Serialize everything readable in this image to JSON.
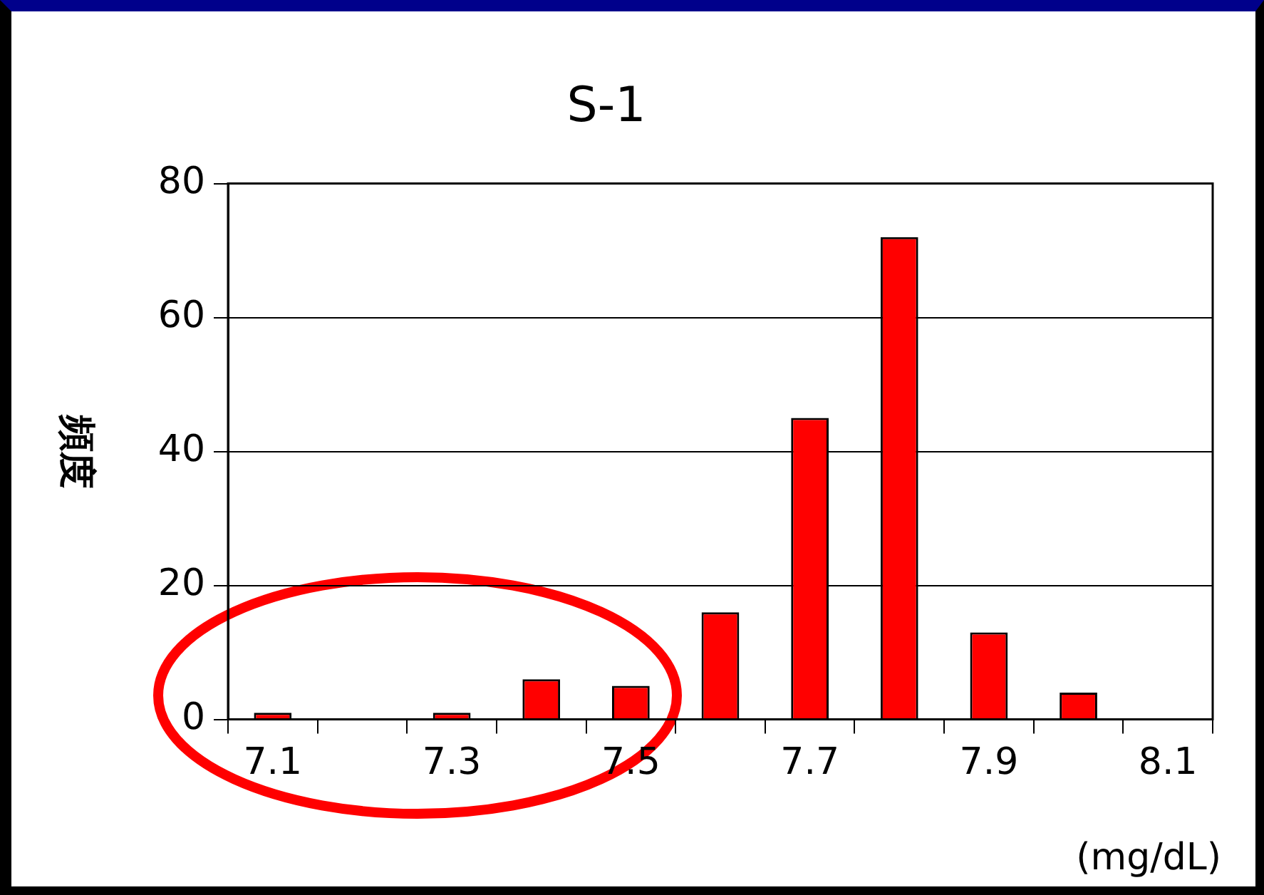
{
  "chart_data": {
    "type": "bar",
    "title": "S-1",
    "ylabel": "頻度",
    "xlabel": "(mg/dL)",
    "categories": [
      "7.1",
      null,
      "7.3",
      null,
      "7.5",
      null,
      "7.7",
      null,
      "7.9",
      null,
      "8.1"
    ],
    "values": [
      1,
      0,
      1,
      6,
      5,
      16,
      45,
      72,
      13,
      4,
      0
    ],
    "color": "#ff0000",
    "ylim": [
      0,
      80
    ],
    "yticks": [
      0,
      20,
      40,
      60,
      80
    ],
    "grid": "y"
  }
}
